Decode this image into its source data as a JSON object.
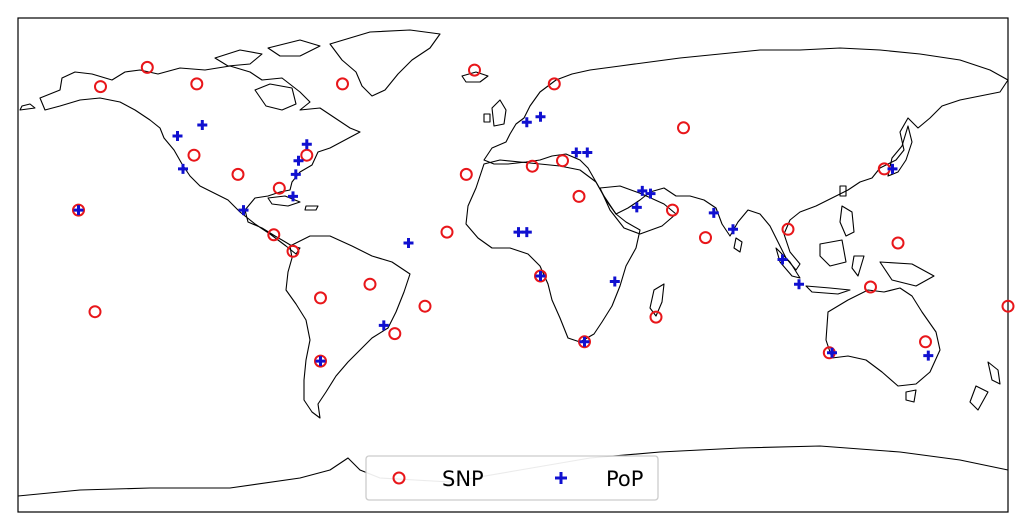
{
  "chart_data": {
    "type": "scatter",
    "projection": "plate-carree",
    "xlim": [
      -180,
      180
    ],
    "ylim": [
      -90,
      90
    ],
    "grid": false,
    "legend_position": "lower-center",
    "series": [
      {
        "name": "SNP",
        "marker": "circle-open",
        "color": "#e8161a",
        "points": [
          [
            -150,
            65
          ],
          [
            -133,
            72
          ],
          [
            -115,
            66
          ],
          [
            -62,
            66
          ],
          [
            -14,
            71
          ],
          [
            15,
            66
          ],
          [
            -116,
            40
          ],
          [
            -100,
            33
          ],
          [
            -85,
            28
          ],
          [
            -75,
            40
          ],
          [
            -87,
            11
          ],
          [
            -80,
            5
          ],
          [
            -158,
            20
          ],
          [
            -152,
            -17
          ],
          [
            -52,
            -7
          ],
          [
            -70,
            -12
          ],
          [
            -43,
            -25
          ],
          [
            -70,
            -35
          ],
          [
            -17,
            33
          ],
          [
            7,
            36
          ],
          [
            18,
            38
          ],
          [
            24,
            25
          ],
          [
            -32,
            -15
          ],
          [
            -24,
            12
          ],
          [
            10,
            -4
          ],
          [
            26,
            -28
          ],
          [
            52,
            -19
          ],
          [
            62,
            50
          ],
          [
            58,
            20
          ],
          [
            70,
            10
          ],
          [
            100,
            13
          ],
          [
            140,
            8
          ],
          [
            130,
            -8
          ],
          [
            135,
            35
          ],
          [
            115,
            -32
          ],
          [
            150,
            -28
          ],
          [
            180,
            -15
          ]
        ]
      },
      {
        "name": "PoP",
        "marker": "plus",
        "color": "#1010d0",
        "points": [
          [
            -122,
            47
          ],
          [
            -113,
            51
          ],
          [
            -120,
            35
          ],
          [
            -98,
            20
          ],
          [
            -80,
            25
          ],
          [
            -79,
            33
          ],
          [
            -75,
            44
          ],
          [
            -78,
            38
          ],
          [
            -38,
            8
          ],
          [
            -47,
            -22
          ],
          [
            -70,
            -35
          ],
          [
            -158,
            20
          ],
          [
            5,
            52
          ],
          [
            10,
            54
          ],
          [
            23,
            41
          ],
          [
            27,
            41
          ],
          [
            50,
            26
          ],
          [
            47,
            27
          ],
          [
            45,
            21
          ],
          [
            73,
            19
          ],
          [
            80,
            13
          ],
          [
            98,
            2
          ],
          [
            104,
            -7
          ],
          [
            116,
            -32
          ],
          [
            37,
            -6
          ],
          [
            2,
            12
          ],
          [
            5,
            12
          ],
          [
            10,
            -4
          ],
          [
            26,
            -28
          ],
          [
            138,
            35
          ],
          [
            151,
            -33
          ]
        ]
      }
    ]
  },
  "legend": {
    "snp_label": "SNP",
    "pop_label": "PoP"
  }
}
